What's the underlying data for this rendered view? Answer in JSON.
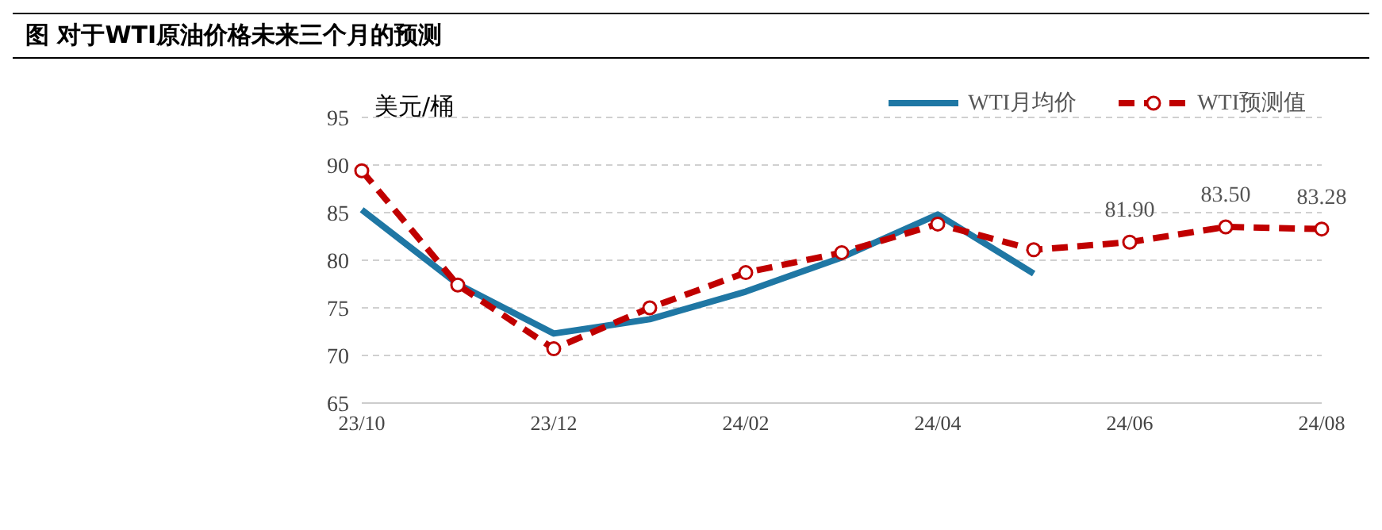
{
  "chart_data": {
    "type": "line",
    "title": "图 对于WTI原油价格未来三个月的预测",
    "ylabel": "美元/桶",
    "categories": [
      "23/10",
      null,
      "23/12",
      null,
      "24/02",
      null,
      "24/04",
      null,
      "24/06",
      null,
      "24/08"
    ],
    "series": [
      {
        "name": "WTI月均价",
        "color": "#1f77a4",
        "marker": "none",
        "line_style": "solid",
        "values": [
          85.3,
          77.5,
          72.3,
          73.8,
          76.7,
          80.3,
          84.8,
          78.6,
          null,
          null,
          null
        ]
      },
      {
        "name": "WTI预测值",
        "color": "#c00000",
        "marker": "circle",
        "line_style": "dashed",
        "values": [
          89.4,
          77.4,
          70.7,
          75.0,
          78.7,
          80.8,
          83.8,
          81.1,
          81.9,
          83.5,
          83.28
        ],
        "value_labels": [
          null,
          null,
          null,
          null,
          null,
          null,
          null,
          null,
          "81.90",
          "83.50",
          "83.28"
        ]
      }
    ],
    "ylim": [
      65,
      95
    ],
    "yticks": [
      65,
      70,
      75,
      80,
      85,
      90,
      95
    ],
    "grid": "y",
    "legend": "top right"
  }
}
